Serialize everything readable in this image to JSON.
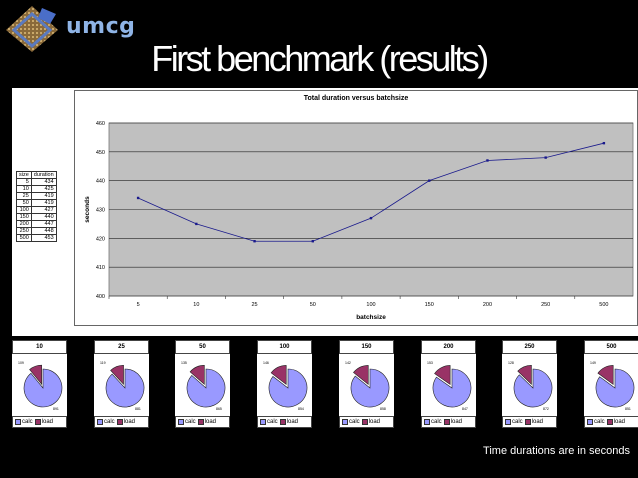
{
  "logo": {
    "text": "umcg",
    "icon": "umcg-logo-icon"
  },
  "slide": {
    "title": "First benchmark (results)",
    "footer": "Time durations are in seconds"
  },
  "table": {
    "headers": [
      "size",
      "duration"
    ],
    "rows": [
      [
        "5",
        "434"
      ],
      [
        "10",
        "425"
      ],
      [
        "25",
        "419"
      ],
      [
        "50",
        "419"
      ],
      [
        "100",
        "427"
      ],
      [
        "150",
        "440"
      ],
      [
        "200",
        "447"
      ],
      [
        "250",
        "448"
      ],
      [
        "500",
        "453"
      ]
    ]
  },
  "chart_data": [
    {
      "type": "line",
      "title": "Total duration versus batchsize",
      "xlabel": "batchsize",
      "ylabel": "seconds",
      "categories": [
        "5",
        "10",
        "25",
        "50",
        "100",
        "150",
        "200",
        "250",
        "500"
      ],
      "series": [
        {
          "values": [
            434,
            425,
            419,
            419,
            427,
            440,
            447,
            448,
            453
          ]
        }
      ],
      "ylim": [
        400,
        460
      ],
      "yticks": [
        400,
        410,
        420,
        430,
        440,
        450,
        460
      ],
      "grid": true,
      "colors": {
        "line": "#1a1a8c",
        "plot_bg": "#c0c0c0"
      }
    },
    {
      "type": "pie",
      "title": "10",
      "labels": [
        "calc",
        "load"
      ],
      "values": [
        891,
        109
      ],
      "data_labels": [
        "891",
        "109"
      ],
      "legend": "bottom"
    },
    {
      "type": "pie",
      "title": "25",
      "labels": [
        "calc",
        "load"
      ],
      "values": [
        881,
        119
      ],
      "data_labels": [
        "881",
        "119"
      ],
      "legend": "bottom"
    },
    {
      "type": "pie",
      "title": "50",
      "labels": [
        "calc",
        "load"
      ],
      "values": [
        865,
        135
      ],
      "data_labels": [
        "865",
        "135"
      ],
      "legend": "bottom"
    },
    {
      "type": "pie",
      "title": "100",
      "labels": [
        "calc",
        "load"
      ],
      "values": [
        854,
        146
      ],
      "data_labels": [
        "854",
        "146"
      ],
      "legend": "bottom"
    },
    {
      "type": "pie",
      "title": "150",
      "labels": [
        "calc",
        "load"
      ],
      "values": [
        858,
        142
      ],
      "data_labels": [
        "858",
        "142"
      ],
      "legend": "bottom"
    },
    {
      "type": "pie",
      "title": "200",
      "labels": [
        "calc",
        "load"
      ],
      "values": [
        847,
        153
      ],
      "data_labels": [
        "847",
        "153"
      ],
      "legend": "bottom"
    },
    {
      "type": "pie",
      "title": "250",
      "labels": [
        "calc",
        "load"
      ],
      "values": [
        872,
        128
      ],
      "data_labels": [
        "872",
        "128"
      ],
      "legend": "bottom"
    },
    {
      "type": "pie",
      "title": "500",
      "labels": [
        "calc",
        "load"
      ],
      "values": [
        851,
        149
      ],
      "data_labels": [
        "851",
        "149"
      ],
      "legend": "bottom"
    }
  ]
}
